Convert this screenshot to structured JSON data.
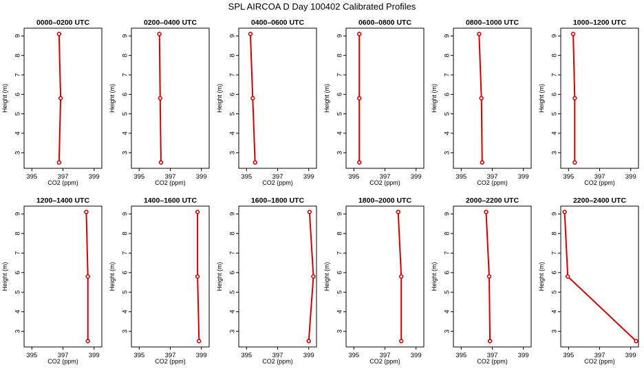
{
  "page_title": "SPL AIRCOA D  Day 100402  Calibrated Profiles",
  "series_color": "#d40000",
  "chart_data": [
    {
      "type": "line",
      "title": "0000–0200 UTC",
      "xlabel": "CO2 (ppm)",
      "ylabel": "Height (m)",
      "xlim": [
        394.5,
        399.5
      ],
      "ylim": [
        2.2,
        9.4
      ],
      "xticks": [
        395,
        397,
        399
      ],
      "yticks": [
        3,
        4,
        5,
        6,
        7,
        8,
        9
      ],
      "points": [
        {
          "x": 396.75,
          "y": 9.1
        },
        {
          "x": 396.85,
          "y": 5.8
        },
        {
          "x": 396.75,
          "y": 2.5
        }
      ]
    },
    {
      "type": "line",
      "title": "0200–0400 UTC",
      "xlabel": "CO2 (ppm)",
      "ylabel": "Height (m)",
      "xlim": [
        394.5,
        399.5
      ],
      "ylim": [
        2.2,
        9.4
      ],
      "xticks": [
        395,
        397,
        399
      ],
      "yticks": [
        3,
        4,
        5,
        6,
        7,
        8,
        9
      ],
      "points": [
        {
          "x": 396.3,
          "y": 9.1
        },
        {
          "x": 396.35,
          "y": 5.8
        },
        {
          "x": 396.4,
          "y": 2.5
        }
      ]
    },
    {
      "type": "line",
      "title": "0400–0600 UTC",
      "xlabel": "CO2 (ppm)",
      "ylabel": "Height (m)",
      "xlim": [
        394.5,
        399.5
      ],
      "ylim": [
        2.2,
        9.4
      ],
      "xticks": [
        395,
        397,
        399
      ],
      "yticks": [
        3,
        4,
        5,
        6,
        7,
        8,
        9
      ],
      "points": [
        {
          "x": 395.25,
          "y": 9.1
        },
        {
          "x": 395.4,
          "y": 5.8
        },
        {
          "x": 395.55,
          "y": 2.5
        }
      ]
    },
    {
      "type": "line",
      "title": "0600–0800 UTC",
      "xlabel": "CO2 (ppm)",
      "ylabel": "Height (m)",
      "xlim": [
        394.5,
        399.5
      ],
      "ylim": [
        2.2,
        9.4
      ],
      "xticks": [
        395,
        397,
        399
      ],
      "yticks": [
        3,
        4,
        5,
        6,
        7,
        8,
        9
      ],
      "points": [
        {
          "x": 395.35,
          "y": 9.1
        },
        {
          "x": 395.35,
          "y": 5.8
        },
        {
          "x": 395.35,
          "y": 2.5
        }
      ]
    },
    {
      "type": "line",
      "title": "0800–1000 UTC",
      "xlabel": "CO2 (ppm)",
      "ylabel": "Height (m)",
      "xlim": [
        394.5,
        399.5
      ],
      "ylim": [
        2.2,
        9.4
      ],
      "xticks": [
        395,
        397,
        399
      ],
      "yticks": [
        3,
        4,
        5,
        6,
        7,
        8,
        9
      ],
      "points": [
        {
          "x": 396.15,
          "y": 9.1
        },
        {
          "x": 396.3,
          "y": 5.8
        },
        {
          "x": 396.35,
          "y": 2.5
        }
      ]
    },
    {
      "type": "line",
      "title": "1000–1200 UTC",
      "xlabel": "CO2 (ppm)",
      "ylabel": "Height (m)",
      "xlim": [
        394.5,
        399.5
      ],
      "ylim": [
        2.2,
        9.4
      ],
      "xticks": [
        395,
        397,
        399
      ],
      "yticks": [
        3,
        4,
        5,
        6,
        7,
        8,
        9
      ],
      "points": [
        {
          "x": 395.3,
          "y": 9.1
        },
        {
          "x": 395.4,
          "y": 5.8
        },
        {
          "x": 395.4,
          "y": 2.5
        }
      ]
    },
    {
      "type": "line",
      "title": "1200–1400 UTC",
      "xlabel": "CO2 (ppm)",
      "ylabel": "Height (m)",
      "xlim": [
        394.5,
        399.5
      ],
      "ylim": [
        2.2,
        9.4
      ],
      "xticks": [
        395,
        397,
        399
      ],
      "yticks": [
        3,
        4,
        5,
        6,
        7,
        8,
        9
      ],
      "points": [
        {
          "x": 398.5,
          "y": 9.1
        },
        {
          "x": 398.6,
          "y": 5.8
        },
        {
          "x": 398.6,
          "y": 2.5
        }
      ]
    },
    {
      "type": "line",
      "title": "1400–1600 UTC",
      "xlabel": "CO2 (ppm)",
      "ylabel": "Height (m)",
      "xlim": [
        394.5,
        399.5
      ],
      "ylim": [
        2.2,
        9.4
      ],
      "xticks": [
        395,
        397,
        399
      ],
      "yticks": [
        3,
        4,
        5,
        6,
        7,
        8,
        9
      ],
      "points": [
        {
          "x": 398.75,
          "y": 9.1
        },
        {
          "x": 398.75,
          "y": 5.8
        },
        {
          "x": 398.85,
          "y": 2.5
        }
      ]
    },
    {
      "type": "line",
      "title": "1600–1800 UTC",
      "xlabel": "CO2 (ppm)",
      "ylabel": "Height (m)",
      "xlim": [
        394.5,
        399.5
      ],
      "ylim": [
        2.2,
        9.4
      ],
      "xticks": [
        395,
        397,
        399
      ],
      "yticks": [
        3,
        4,
        5,
        6,
        7,
        8,
        9
      ],
      "points": [
        {
          "x": 399.05,
          "y": 9.1
        },
        {
          "x": 399.3,
          "y": 5.8
        },
        {
          "x": 399.0,
          "y": 2.5
        }
      ]
    },
    {
      "type": "line",
      "title": "1800–2000 UTC",
      "xlabel": "CO2 (ppm)",
      "ylabel": "Height (m)",
      "xlim": [
        394.5,
        399.5
      ],
      "ylim": [
        2.2,
        9.4
      ],
      "xticks": [
        395,
        397,
        399
      ],
      "yticks": [
        3,
        4,
        5,
        6,
        7,
        8,
        9
      ],
      "points": [
        {
          "x": 397.85,
          "y": 9.1
        },
        {
          "x": 398.05,
          "y": 5.8
        },
        {
          "x": 398.05,
          "y": 2.5
        }
      ]
    },
    {
      "type": "line",
      "title": "2000–2200 UTC",
      "xlabel": "CO2 (ppm)",
      "ylabel": "Height (m)",
      "xlim": [
        394.5,
        399.5
      ],
      "ylim": [
        2.2,
        9.4
      ],
      "xticks": [
        395,
        397,
        399
      ],
      "yticks": [
        3,
        4,
        5,
        6,
        7,
        8,
        9
      ],
      "points": [
        {
          "x": 396.6,
          "y": 9.1
        },
        {
          "x": 396.8,
          "y": 5.8
        },
        {
          "x": 396.85,
          "y": 2.5
        }
      ]
    },
    {
      "type": "line",
      "title": "2200–2400 UTC",
      "xlabel": "CO2 (ppm)",
      "ylabel": "Height (m)",
      "xlim": [
        394.5,
        399.5
      ],
      "ylim": [
        2.2,
        9.4
      ],
      "xticks": [
        395,
        397,
        399
      ],
      "yticks": [
        3,
        4,
        5,
        6,
        7,
        8,
        9
      ],
      "points": [
        {
          "x": 394.75,
          "y": 9.1
        },
        {
          "x": 394.95,
          "y": 5.8
        },
        {
          "x": 399.35,
          "y": 2.5
        }
      ]
    }
  ]
}
